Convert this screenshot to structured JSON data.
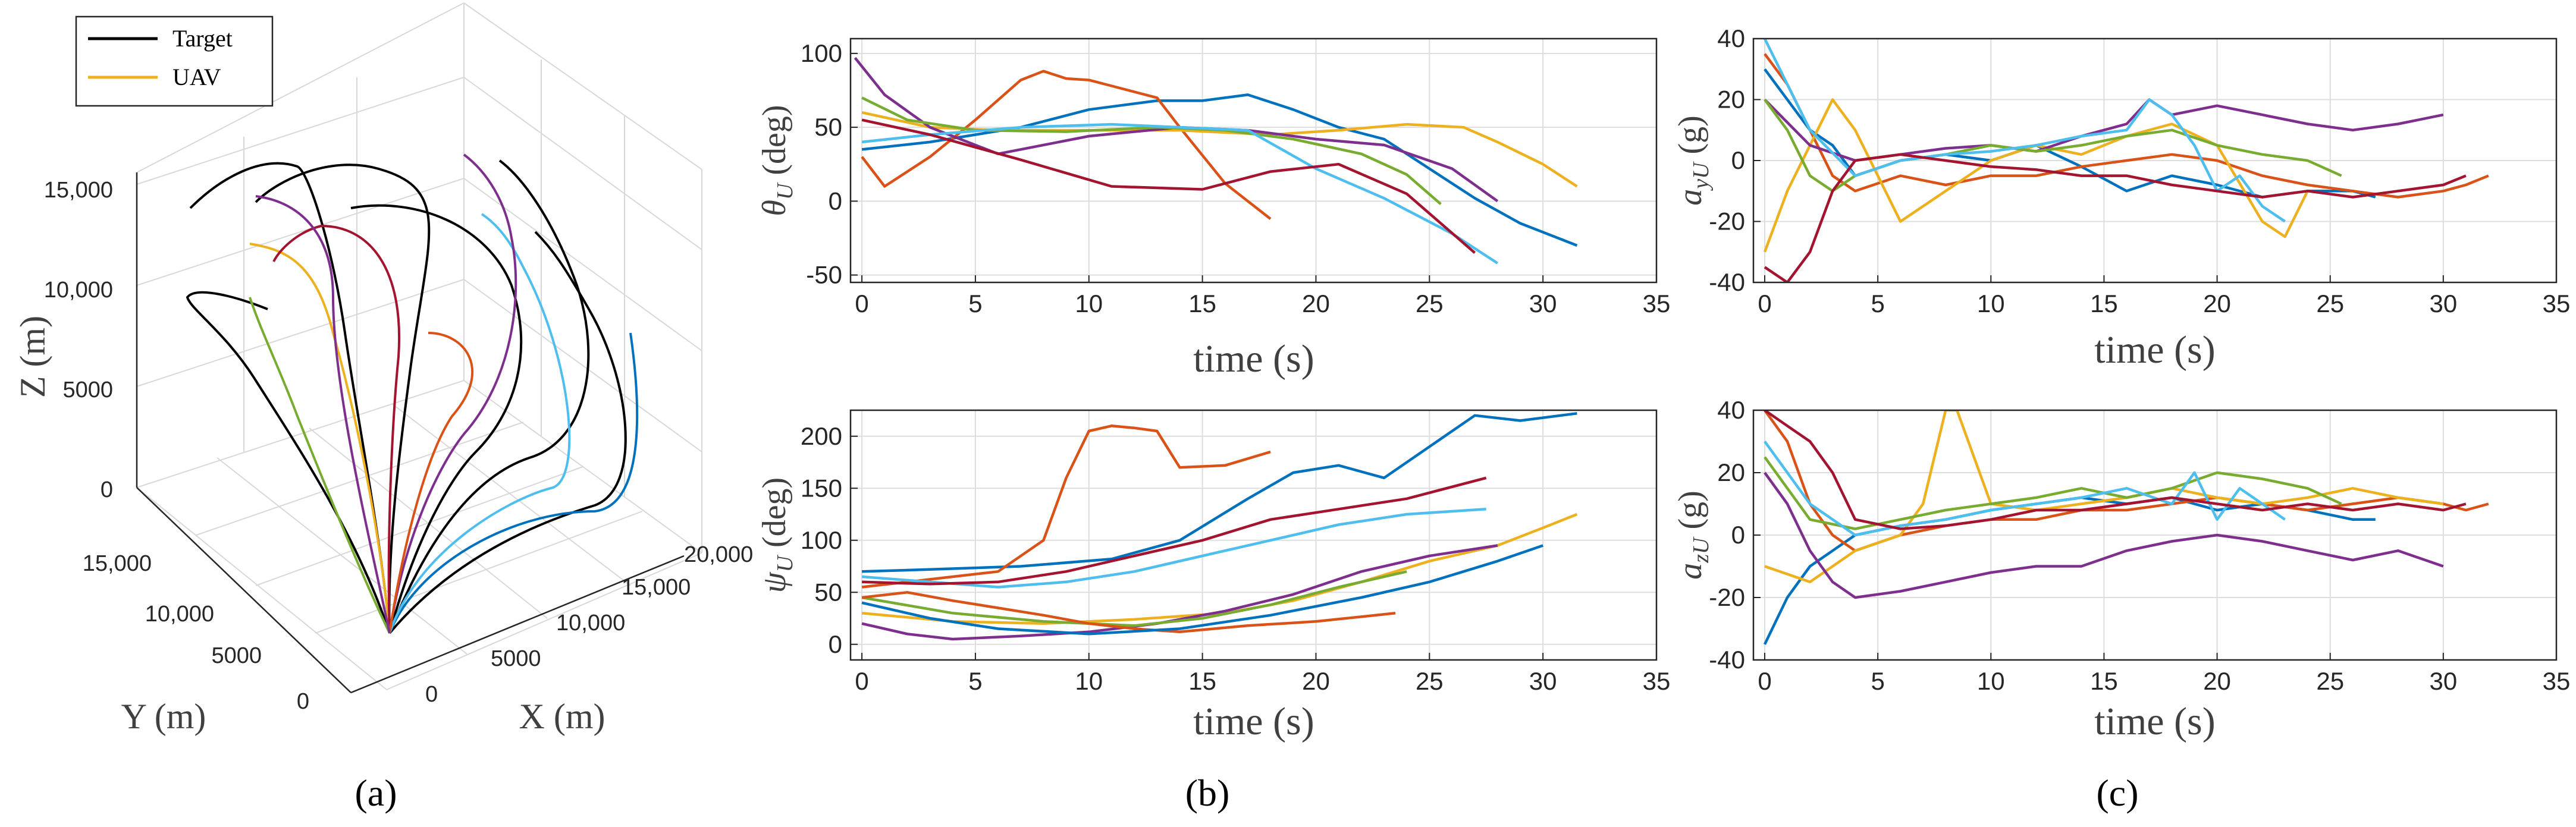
{
  "figure": {
    "panel_labels": [
      "(a)",
      "(b)",
      "(c)"
    ]
  },
  "colors": {
    "target": "#000000",
    "uav": "#EDB120",
    "grid": "#dddddd",
    "axis": "#262626",
    "palette": [
      "#0072BD",
      "#D95319",
      "#EDB120",
      "#7E2F8E",
      "#77AC30",
      "#4DBEEE",
      "#A2142F"
    ]
  },
  "chart_data": [
    {
      "id": "a",
      "type": "line",
      "subtype": "3d-trajectories",
      "title": "",
      "legend": {
        "placement": "top-left",
        "entries": [
          {
            "name": "Target",
            "color": "#000000"
          },
          {
            "name": "UAV",
            "color": "#EDB120"
          }
        ]
      },
      "xlabel": "X (m)",
      "ylabel": "Y (m)",
      "zlabel": "Z (m)",
      "xticks": [
        "0",
        "5000",
        "10,000",
        "15,000",
        "20,000"
      ],
      "yticks": [
        "0",
        "5000",
        "10,000",
        "15,000"
      ],
      "zticks": [
        "0",
        "5000",
        "10,000",
        "15,000"
      ],
      "zlim": [
        0,
        16000
      ]
    },
    {
      "id": "b-top",
      "type": "line",
      "title": "",
      "xlabel": "time (s)",
      "ylabel": "θU (deg)",
      "xlim": [
        -0.5,
        35
      ],
      "ylim": [
        -55,
        110
      ],
      "xticks": [
        0,
        5,
        10,
        15,
        20,
        25,
        30,
        35
      ],
      "yticks": [
        -50,
        0,
        50,
        100
      ],
      "grid": true,
      "series": [
        {
          "color": "#0072BD",
          "x": [
            0,
            3,
            7,
            10,
            13,
            15,
            17,
            19,
            21,
            23,
            25,
            27,
            29,
            31.5
          ],
          "y": [
            35,
            40,
            50,
            62,
            68,
            68,
            72,
            62,
            50,
            42,
            22,
            2,
            -15,
            -30
          ]
        },
        {
          "color": "#D95319",
          "x": [
            0,
            1,
            3,
            5,
            7,
            8,
            9,
            10,
            11,
            12,
            13,
            14,
            16,
            18
          ],
          "y": [
            30,
            10,
            30,
            55,
            82,
            88,
            83,
            82,
            78,
            74,
            70,
            50,
            12,
            -12
          ]
        },
        {
          "color": "#EDB120",
          "x": [
            0,
            3,
            6,
            10,
            14,
            18,
            21,
            24,
            26.5,
            28,
            30,
            31.5
          ],
          "y": [
            60,
            50,
            48,
            48,
            48,
            45,
            48,
            52,
            50,
            40,
            25,
            10
          ]
        },
        {
          "color": "#7E2F8E",
          "x": [
            -0.3,
            1,
            3,
            6,
            10,
            14,
            17,
            20,
            23,
            26,
            28
          ],
          "y": [
            97,
            72,
            50,
            32,
            44,
            50,
            48,
            42,
            38,
            22,
            0
          ]
        },
        {
          "color": "#77AC30",
          "x": [
            0,
            2,
            5,
            9,
            13,
            16,
            19,
            22,
            24,
            25.5
          ],
          "y": [
            70,
            55,
            48,
            47,
            50,
            48,
            42,
            32,
            18,
            -2
          ]
        },
        {
          "color": "#4DBEEE",
          "x": [
            0,
            3,
            7,
            11,
            14,
            17,
            20,
            23,
            26,
            28
          ],
          "y": [
            40,
            45,
            50,
            52,
            50,
            48,
            22,
            2,
            -22,
            -42
          ]
        },
        {
          "color": "#A2142F",
          "x": [
            0,
            3,
            7,
            11,
            15,
            18,
            21,
            24,
            27
          ],
          "y": [
            55,
            45,
            28,
            10,
            8,
            20,
            25,
            5,
            -35
          ]
        }
      ]
    },
    {
      "id": "b-bottom",
      "type": "line",
      "title": "",
      "xlabel": "time (s)",
      "ylabel": "ψU (deg)",
      "xlim": [
        -0.5,
        35
      ],
      "ylim": [
        -15,
        225
      ],
      "xticks": [
        0,
        5,
        10,
        15,
        20,
        25,
        30,
        35
      ],
      "yticks": [
        0,
        50,
        100,
        150,
        200
      ],
      "grid": true,
      "series": [
        {
          "color": "#0072BD",
          "x": [
            0,
            3,
            7,
            11,
            14,
            17,
            19,
            21,
            23,
            25,
            27,
            29,
            31.5
          ],
          "y": [
            70,
            72,
            75,
            82,
            100,
            140,
            165,
            172,
            160,
            190,
            220,
            215,
            222
          ]
        },
        {
          "color": "#D95319",
          "x": [
            0,
            2,
            4,
            6,
            8,
            9,
            10,
            11,
            12,
            13,
            14,
            16,
            18
          ],
          "y": [
            55,
            60,
            65,
            70,
            100,
            160,
            205,
            210,
            208,
            205,
            170,
            172,
            185
          ]
        },
        {
          "color": "#EDB120",
          "x": [
            0,
            4,
            8,
            12,
            16,
            19,
            22,
            25,
            28,
            30,
            31.5
          ],
          "y": [
            30,
            22,
            20,
            24,
            30,
            42,
            60,
            80,
            95,
            112,
            125
          ]
        },
        {
          "color": "#7E2F8E",
          "x": [
            0,
            2,
            4,
            7,
            10,
            13,
            16,
            19,
            22,
            25,
            28
          ],
          "y": [
            20,
            10,
            5,
            8,
            12,
            20,
            32,
            48,
            70,
            85,
            95
          ]
        },
        {
          "color": "#77AC30",
          "x": [
            0,
            4,
            8,
            12,
            15,
            18,
            21,
            24
          ],
          "y": [
            45,
            30,
            22,
            18,
            25,
            38,
            55,
            70
          ]
        },
        {
          "color": "#4DBEEE",
          "x": [
            0,
            3,
            6,
            9,
            12,
            15,
            18,
            21,
            24,
            27.5
          ],
          "y": [
            65,
            60,
            55,
            60,
            70,
            85,
            100,
            115,
            125,
            130
          ]
        },
        {
          "color": "#A2142F",
          "x": [
            0,
            3,
            6,
            9,
            12,
            15,
            18,
            21,
            24,
            27.5
          ],
          "y": [
            60,
            58,
            60,
            70,
            85,
            100,
            120,
            130,
            140,
            160
          ]
        },
        {
          "color": "#D95319",
          "x": [
            0,
            2,
            4,
            6,
            8,
            10,
            12,
            14,
            17,
            20,
            23.5
          ],
          "y": [
            45,
            50,
            42,
            35,
            28,
            20,
            15,
            12,
            18,
            22,
            30
          ]
        },
        {
          "color": "#0072BD",
          "x": [
            0,
            3,
            6,
            10,
            14,
            18,
            22,
            25,
            28,
            30
          ],
          "y": [
            40,
            25,
            15,
            10,
            15,
            28,
            45,
            60,
            80,
            95
          ]
        }
      ]
    },
    {
      "id": "c-top",
      "type": "line",
      "title": "",
      "xlabel": "time (s)",
      "ylabel": "ayU (g)",
      "xlim": [
        -0.5,
        35
      ],
      "ylim": [
        -40,
        40
      ],
      "xticks": [
        0,
        5,
        10,
        15,
        20,
        25,
        30,
        35
      ],
      "yticks": [
        -40,
        -20,
        0,
        20,
        40
      ],
      "grid": true,
      "series": [
        {
          "color": "#0072BD",
          "x": [
            0,
            1,
            2,
            3,
            4,
            6,
            8,
            10,
            12,
            14,
            16,
            18,
            20,
            22,
            24,
            26,
            27
          ],
          "y": [
            30,
            20,
            10,
            5,
            -5,
            0,
            2,
            0,
            5,
            -2,
            -10,
            -5,
            -8,
            -12,
            -10,
            -10,
            -12
          ]
        },
        {
          "color": "#D95319",
          "x": [
            0,
            1,
            2,
            3,
            4,
            6,
            8,
            10,
            12,
            14,
            16,
            18,
            20,
            22,
            24,
            26,
            28,
            30,
            31,
            32
          ],
          "y": [
            35,
            25,
            10,
            -5,
            -10,
            -5,
            -8,
            -5,
            -5,
            -2,
            0,
            2,
            0,
            -5,
            -8,
            -10,
            -12,
            -10,
            -8,
            -5
          ]
        },
        {
          "color": "#EDB120",
          "x": [
            0,
            1,
            2,
            3,
            4,
            5,
            6,
            8,
            10,
            12,
            14,
            16,
            18,
            20,
            22,
            23,
            24
          ],
          "y": [
            -30,
            -10,
            5,
            20,
            10,
            -5,
            -20,
            -10,
            0,
            5,
            2,
            8,
            12,
            5,
            -20,
            -25,
            -10
          ]
        },
        {
          "color": "#7E2F8E",
          "x": [
            0,
            2,
            4,
            6,
            8,
            10,
            12,
            14,
            16,
            17,
            18,
            20,
            22,
            24,
            26,
            28,
            30
          ],
          "y": [
            20,
            5,
            0,
            2,
            4,
            5,
            3,
            8,
            12,
            20,
            15,
            18,
            15,
            12,
            10,
            12,
            15
          ]
        },
        {
          "color": "#77AC30",
          "x": [
            0,
            1,
            2,
            3,
            4,
            6,
            8,
            10,
            12,
            14,
            16,
            18,
            20,
            22,
            24,
            25.5
          ],
          "y": [
            20,
            10,
            -5,
            -10,
            -5,
            0,
            2,
            5,
            3,
            5,
            8,
            10,
            5,
            2,
            0,
            -5
          ]
        },
        {
          "color": "#4DBEEE",
          "x": [
            0,
            2,
            4,
            6,
            8,
            10,
            12,
            14,
            16,
            17,
            18,
            19,
            20,
            21,
            22,
            23
          ],
          "y": [
            40,
            10,
            -5,
            0,
            2,
            3,
            5,
            8,
            10,
            20,
            15,
            5,
            -10,
            -5,
            -15,
            -20
          ]
        },
        {
          "color": "#A2142F",
          "x": [
            0,
            1,
            2,
            3,
            4,
            6,
            8,
            10,
            12,
            14,
            16,
            18,
            20,
            22,
            24,
            26,
            28,
            30,
            31
          ],
          "y": [
            -35,
            -40,
            -30,
            -10,
            0,
            2,
            0,
            -2,
            -3,
            -5,
            -5,
            -8,
            -10,
            -12,
            -10,
            -12,
            -10,
            -8,
            -5
          ]
        }
      ]
    },
    {
      "id": "c-bottom",
      "type": "line",
      "title": "",
      "xlabel": "time (s)",
      "ylabel": "azU (g)",
      "xlim": [
        -0.5,
        35
      ],
      "ylim": [
        -40,
        40
      ],
      "xticks": [
        0,
        5,
        10,
        15,
        20,
        25,
        30,
        35
      ],
      "yticks": [
        -40,
        -20,
        0,
        20,
        40
      ],
      "grid": true,
      "series": [
        {
          "color": "#0072BD",
          "x": [
            0,
            1,
            2,
            3,
            4,
            6,
            8,
            10,
            12,
            14,
            16,
            18,
            20,
            22,
            24,
            26,
            27
          ],
          "y": [
            -35,
            -20,
            -10,
            -5,
            0,
            3,
            5,
            8,
            10,
            12,
            10,
            12,
            8,
            10,
            8,
            5,
            5
          ]
        },
        {
          "color": "#D95319",
          "x": [
            0,
            1,
            2,
            3,
            4,
            6,
            8,
            10,
            12,
            14,
            16,
            18,
            20,
            22,
            24,
            26,
            28,
            30,
            31,
            32
          ],
          "y": [
            40,
            30,
            10,
            0,
            -5,
            0,
            3,
            5,
            5,
            8,
            8,
            10,
            12,
            10,
            8,
            10,
            12,
            10,
            8,
            10
          ]
        },
        {
          "color": "#EDB120",
          "x": [
            0,
            2,
            4,
            6,
            7,
            8,
            8.5,
            9,
            10,
            12,
            14,
            16,
            18,
            20,
            22,
            24,
            26,
            28,
            30
          ],
          "y": [
            -10,
            -15,
            -5,
            0,
            10,
            40,
            40,
            30,
            10,
            8,
            10,
            12,
            15,
            12,
            10,
            12,
            15,
            12,
            10
          ]
        },
        {
          "color": "#7E2F8E",
          "x": [
            0,
            1,
            2,
            3,
            4,
            6,
            8,
            10,
            12,
            14,
            16,
            18,
            20,
            22,
            24,
            26,
            28,
            30
          ],
          "y": [
            20,
            10,
            -5,
            -15,
            -20,
            -18,
            -15,
            -12,
            -10,
            -10,
            -5,
            -2,
            0,
            -2,
            -5,
            -8,
            -5,
            -10
          ]
        },
        {
          "color": "#77AC30",
          "x": [
            0,
            2,
            4,
            6,
            8,
            10,
            12,
            14,
            16,
            18,
            20,
            22,
            24,
            25.5
          ],
          "y": [
            25,
            5,
            2,
            5,
            8,
            10,
            12,
            15,
            12,
            15,
            20,
            18,
            15,
            10
          ]
        },
        {
          "color": "#4DBEEE",
          "x": [
            0,
            2,
            4,
            6,
            8,
            10,
            12,
            14,
            16,
            18,
            19,
            20,
            21,
            22,
            23
          ],
          "y": [
            30,
            10,
            0,
            3,
            5,
            8,
            10,
            12,
            15,
            10,
            20,
            5,
            15,
            10,
            5
          ]
        },
        {
          "color": "#A2142F",
          "x": [
            0,
            1,
            2,
            3,
            4,
            6,
            8,
            10,
            12,
            14,
            16,
            18,
            20,
            22,
            24,
            26,
            28,
            30,
            31
          ],
          "y": [
            40,
            35,
            30,
            20,
            5,
            2,
            3,
            5,
            8,
            8,
            10,
            12,
            10,
            8,
            10,
            8,
            10,
            8,
            10
          ]
        }
      ]
    }
  ]
}
